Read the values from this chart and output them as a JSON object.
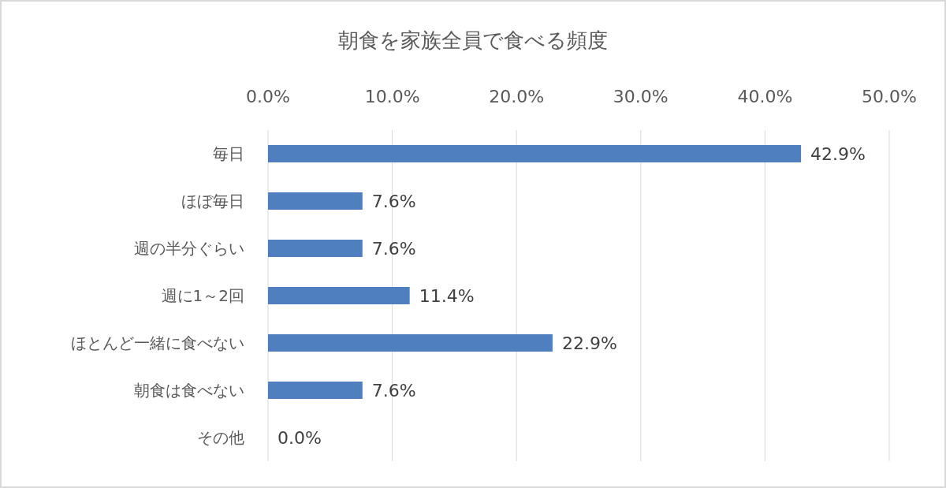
{
  "chart_data": {
    "type": "bar",
    "orientation": "horizontal",
    "title": "朝食を家族全員で食べる頻度",
    "categories": [
      "毎日",
      "ほぼ毎日",
      "週の半分ぐらい",
      "週に1～2回",
      "ほとんど一緒に食べない",
      "朝食は食べない",
      "その他"
    ],
    "values": [
      42.9,
      7.6,
      7.6,
      11.4,
      22.9,
      7.6,
      0.0
    ],
    "value_labels": [
      "42.9%",
      "7.6%",
      "7.6%",
      "11.4%",
      "22.9%",
      "7.6%",
      "0.0%"
    ],
    "color": "#4f7fbe",
    "xlim": [
      0,
      50
    ],
    "xticks": [
      {
        "value": 0,
        "label": "0.0%"
      },
      {
        "value": 10,
        "label": "10.0%"
      },
      {
        "value": 20,
        "label": "20.0%"
      },
      {
        "value": 30,
        "label": "30.0%"
      },
      {
        "value": 40,
        "label": "40.0%"
      },
      {
        "value": 50,
        "label": "50.0%"
      }
    ],
    "grid": "x"
  }
}
